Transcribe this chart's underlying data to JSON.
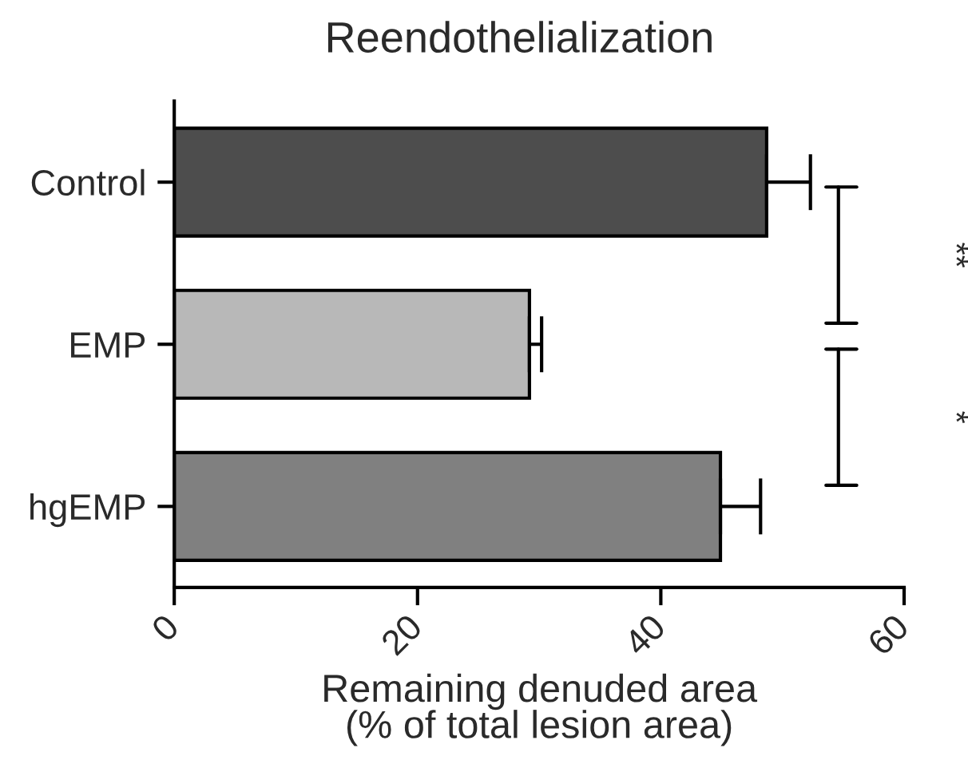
{
  "chart_data": {
    "type": "bar",
    "orientation": "horizontal",
    "title": "Reendothelialization",
    "xlabel": "Remaining denuded area\n(% of total lesion area)",
    "categories": [
      "Control",
      "EMP",
      "hgEMP"
    ],
    "values": [
      48.7,
      29.2,
      44.9
    ],
    "colors": [
      "#4d4d4d",
      "#b8b8b8",
      "#808080"
    ],
    "errors": [
      [
        48.7,
        52.3
      ],
      [
        29.2,
        30.2
      ],
      [
        44.9,
        48.2
      ]
    ],
    "xlim": [
      0,
      60
    ],
    "xticks": [
      0,
      20,
      40,
      60
    ],
    "annotations": [
      "**",
      "*"
    ],
    "grid": false,
    "legend": false
  }
}
